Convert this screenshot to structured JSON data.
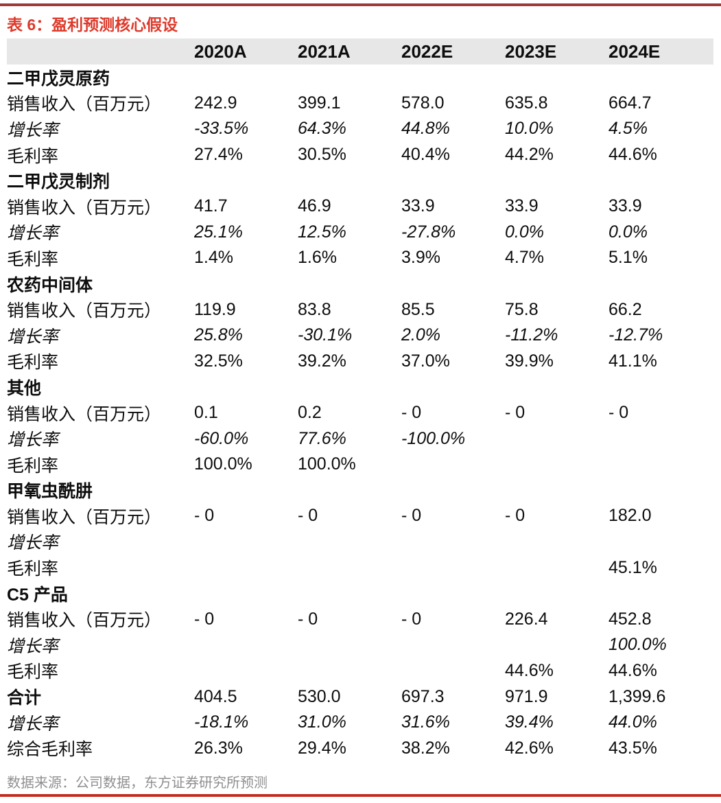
{
  "title": "表 6：盈利预测核心假设",
  "source": "数据来源：公司数据，东方证券研究所预测",
  "colors": {
    "title_red": "#dd3a2b",
    "top_rule_maroon": "#9e3b39",
    "bottom_rule_red": "#c42a1f",
    "header_bg_gray": "#e7e7e7",
    "source_text_gray": "#8f8f8f"
  },
  "table": {
    "header": [
      "2020A",
      "2021A",
      "2022E",
      "2023E",
      "2024E"
    ],
    "rows": [
      {
        "type": "section",
        "label": "二甲戊灵原药",
        "values": [
          "",
          "",
          "",
          "",
          ""
        ]
      },
      {
        "type": "data",
        "label": "销售收入（百万元）",
        "values": [
          "242.9",
          "399.1",
          "578.0",
          "635.8",
          "664.7"
        ]
      },
      {
        "type": "growth",
        "label": "增长率",
        "values": [
          "-33.5%",
          "64.3%",
          "44.8%",
          "10.0%",
          "4.5%"
        ]
      },
      {
        "type": "data",
        "label": "毛利率",
        "values": [
          "27.4%",
          "30.5%",
          "40.4%",
          "44.2%",
          "44.6%"
        ]
      },
      {
        "type": "section",
        "label": "二甲戊灵制剂",
        "values": [
          "",
          "",
          "",
          "",
          ""
        ]
      },
      {
        "type": "data",
        "label": "销售收入（百万元）",
        "values": [
          "41.7",
          "46.9",
          "33.9",
          "33.9",
          "33.9"
        ]
      },
      {
        "type": "growth",
        "label": "增长率",
        "values": [
          "25.1%",
          "12.5%",
          "-27.8%",
          "0.0%",
          "0.0%"
        ]
      },
      {
        "type": "data",
        "label": "毛利率",
        "values": [
          "1.4%",
          "1.6%",
          "3.9%",
          "4.7%",
          "5.1%"
        ]
      },
      {
        "type": "section",
        "label": "农药中间体",
        "values": [
          "",
          "",
          "",
          "",
          ""
        ]
      },
      {
        "type": "data",
        "label": "销售收入（百万元）",
        "values": [
          "119.9",
          "83.8",
          "85.5",
          "75.8",
          "66.2"
        ]
      },
      {
        "type": "growth",
        "label": "增长率",
        "values": [
          "25.8%",
          "-30.1%",
          "2.0%",
          "-11.2%",
          "-12.7%"
        ]
      },
      {
        "type": "data",
        "label": "毛利率",
        "values": [
          "32.5%",
          "39.2%",
          "37.0%",
          "39.9%",
          "41.1%"
        ]
      },
      {
        "type": "section",
        "label": "其他",
        "values": [
          "",
          "",
          "",
          "",
          ""
        ]
      },
      {
        "type": "data",
        "label": "销售收入（百万元）",
        "values": [
          "0.1",
          "0.2",
          "- 0",
          "- 0",
          "- 0"
        ]
      },
      {
        "type": "growth",
        "label": "增长率",
        "values": [
          "-60.0%",
          "77.6%",
          "-100.0%",
          "",
          ""
        ]
      },
      {
        "type": "data",
        "label": "毛利率",
        "values": [
          "100.0%",
          "100.0%",
          "",
          "",
          ""
        ]
      },
      {
        "type": "section",
        "label": "甲氧虫酰肼",
        "values": [
          "",
          "",
          "",
          "",
          ""
        ]
      },
      {
        "type": "data",
        "label": "销售收入（百万元）",
        "values": [
          "- 0",
          "- 0",
          "- 0",
          "- 0",
          "182.0"
        ]
      },
      {
        "type": "growth",
        "label": "增长率",
        "values": [
          "",
          "",
          "",
          "",
          ""
        ]
      },
      {
        "type": "data",
        "label": "毛利率",
        "values": [
          "",
          "",
          "",
          "",
          "45.1%"
        ]
      },
      {
        "type": "section",
        "label": "C5 产品",
        "values": [
          "",
          "",
          "",
          "",
          ""
        ]
      },
      {
        "type": "data",
        "label": "销售收入（百万元）",
        "values": [
          "- 0",
          "- 0",
          "- 0",
          "226.4",
          "452.8"
        ]
      },
      {
        "type": "growth",
        "label": "增长率",
        "values": [
          "",
          "",
          "",
          "",
          "100.0%"
        ]
      },
      {
        "type": "data",
        "label": "毛利率",
        "values": [
          "",
          "",
          "",
          "44.6%",
          "44.6%"
        ]
      },
      {
        "type": "total",
        "label": "合计",
        "values": [
          "404.5",
          "530.0",
          "697.3",
          "971.9",
          "1,399.6"
        ]
      },
      {
        "type": "growth",
        "label": "增长率",
        "values": [
          "-18.1%",
          "31.0%",
          "31.6%",
          "39.4%",
          "44.0%"
        ]
      },
      {
        "type": "data",
        "label": "综合毛利率",
        "values": [
          "26.3%",
          "29.4%",
          "38.2%",
          "42.6%",
          "43.5%"
        ]
      }
    ]
  }
}
